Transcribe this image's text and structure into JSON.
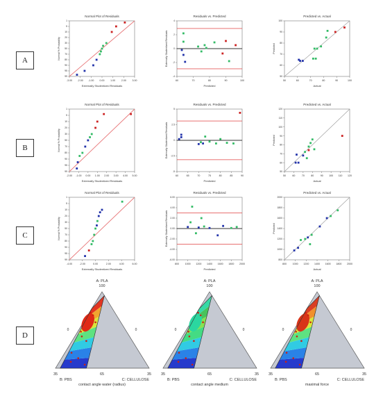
{
  "rows": [
    {
      "label": "A"
    },
    {
      "label": "B"
    },
    {
      "label": "C"
    },
    {
      "label": "D"
    }
  ],
  "colors": {
    "refline": "#e8787a",
    "limit": "#e04040",
    "zero": "#333333",
    "blue": "#2233aa",
    "green": "#33bb66",
    "red": "#cc2222",
    "grey_region": "#c5c9d2"
  },
  "chart_data": [
    {
      "type": "scatter",
      "panel": "A1",
      "title": "Normal Plot of Residuals",
      "xlabel": "Externally Studentized Residuals",
      "ylabel": "Normal % Probability",
      "xlim": [
        -3,
        3
      ],
      "ylim": [
        0,
        100
      ],
      "xticks": [
        "-3.00",
        "-2.00",
        "-1.00",
        "0.00",
        "1.00",
        "2.00",
        "3.00"
      ],
      "yticks": [
        "1",
        "5",
        "10",
        "20",
        "30",
        "50",
        "70",
        "80",
        "90",
        "95",
        "99"
      ],
      "points": [
        {
          "x": -2.3,
          "y": 3,
          "c": "blue"
        },
        {
          "x": -1.6,
          "y": 10,
          "c": "blue"
        },
        {
          "x": -0.8,
          "y": 20,
          "c": "blue"
        },
        {
          "x": -0.5,
          "y": 30,
          "c": "blue"
        },
        {
          "x": -0.2,
          "y": 40,
          "c": "green"
        },
        {
          "x": -0.1,
          "y": 45,
          "c": "green"
        },
        {
          "x": 0.0,
          "y": 50,
          "c": "green"
        },
        {
          "x": 0.1,
          "y": 55,
          "c": "green"
        },
        {
          "x": 0.4,
          "y": 60,
          "c": "green"
        },
        {
          "x": 0.9,
          "y": 80,
          "c": "red"
        },
        {
          "x": 1.3,
          "y": 90,
          "c": "red"
        },
        {
          "x": 2.1,
          "y": 97,
          "c": "red"
        }
      ]
    },
    {
      "type": "scatter",
      "panel": "A2",
      "title": "Residuals vs. Predicted",
      "xlabel": "Predicted",
      "ylabel": "Externally Studentized Residuals",
      "xlim": [
        60,
        100
      ],
      "ylim": [
        -4,
        4
      ],
      "xticks": [
        "60",
        "70",
        "80",
        "90",
        "100"
      ],
      "yticks": [
        "4",
        "2",
        "0",
        "-2",
        "-4"
      ],
      "limits": [
        2.9,
        -2.9
      ],
      "points": [
        {
          "x": 64,
          "y": 2.2,
          "c": "green"
        },
        {
          "x": 64,
          "y": 1.0,
          "c": "green"
        },
        {
          "x": 63,
          "y": -0.2,
          "c": "blue"
        },
        {
          "x": 64,
          "y": -0.9,
          "c": "blue"
        },
        {
          "x": 65,
          "y": -1.9,
          "c": "blue"
        },
        {
          "x": 73,
          "y": 0.3,
          "c": "green"
        },
        {
          "x": 75,
          "y": -0.4,
          "c": "green"
        },
        {
          "x": 77,
          "y": 0.5,
          "c": "green"
        },
        {
          "x": 78,
          "y": 0.1,
          "c": "green"
        },
        {
          "x": 83,
          "y": 0.9,
          "c": "green"
        },
        {
          "x": 88,
          "y": -0.7,
          "c": "red"
        },
        {
          "x": 90,
          "y": 1.1,
          "c": "red"
        },
        {
          "x": 92,
          "y": -1.8,
          "c": "green"
        },
        {
          "x": 96,
          "y": 0.5,
          "c": "red"
        }
      ]
    },
    {
      "type": "scatter",
      "panel": "A3",
      "title": "Predicted vs. Actual",
      "xlabel": "Actual",
      "ylabel": "Predicted",
      "xlim": [
        50,
        100
      ],
      "ylim": [
        50,
        100
      ],
      "xticks": [
        "50",
        "60",
        "70",
        "80",
        "90",
        "100"
      ],
      "yticks": [
        "100",
        "90",
        "80",
        "70",
        "60",
        "50"
      ],
      "points": [
        {
          "x": 61,
          "y": 65,
          "c": "blue"
        },
        {
          "x": 62,
          "y": 64,
          "c": "blue"
        },
        {
          "x": 64,
          "y": 64,
          "c": "blue"
        },
        {
          "x": 72,
          "y": 66,
          "c": "green"
        },
        {
          "x": 74,
          "y": 66,
          "c": "green"
        },
        {
          "x": 73,
          "y": 75,
          "c": "green"
        },
        {
          "x": 75,
          "y": 75,
          "c": "green"
        },
        {
          "x": 78,
          "y": 77,
          "c": "green"
        },
        {
          "x": 82,
          "y": 85,
          "c": "green"
        },
        {
          "x": 83,
          "y": 91,
          "c": "green"
        },
        {
          "x": 89,
          "y": 90,
          "c": "red"
        },
        {
          "x": 96,
          "y": 94,
          "c": "red"
        }
      ]
    },
    {
      "type": "scatter",
      "panel": "B1",
      "title": "Normal Plot of Residuals",
      "xlabel": "Externally Studentized Residuals",
      "ylabel": "Normal % Probability",
      "xlim": [
        -2,
        5
      ],
      "ylim": [
        0,
        100
      ],
      "xticks": [
        "-2.00",
        "-1.00",
        "0.00",
        "1.00",
        "2.00",
        "3.00",
        "4.00",
        "5.00"
      ],
      "yticks": [
        "1",
        "5",
        "10",
        "20",
        "30",
        "50",
        "70",
        "80",
        "90",
        "95",
        "99"
      ],
      "points": [
        {
          "x": -1.2,
          "y": 5,
          "c": "blue"
        },
        {
          "x": -1.1,
          "y": 15,
          "c": "blue"
        },
        {
          "x": -0.9,
          "y": 25,
          "c": "green"
        },
        {
          "x": -0.6,
          "y": 30,
          "c": "green"
        },
        {
          "x": -0.3,
          "y": 40,
          "c": "blue"
        },
        {
          "x": 0.0,
          "y": 50,
          "c": "blue"
        },
        {
          "x": 0.2,
          "y": 55,
          "c": "green"
        },
        {
          "x": 0.4,
          "y": 60,
          "c": "green"
        },
        {
          "x": 0.8,
          "y": 70,
          "c": "red"
        },
        {
          "x": 1.0,
          "y": 80,
          "c": "red"
        },
        {
          "x": 1.7,
          "y": 92,
          "c": "red"
        },
        {
          "x": 4.6,
          "y": 92,
          "c": "red"
        }
      ]
    },
    {
      "type": "scatter",
      "panel": "B2",
      "title": "Residuals vs. Predicted",
      "xlabel": "Predicted",
      "ylabel": "Externally Studentized Residuals",
      "xlim": [
        60,
        90
      ],
      "ylim": [
        -5,
        5
      ],
      "xticks": [
        "60",
        "65",
        "70",
        "75",
        "80",
        "85",
        "90"
      ],
      "yticks": [
        "5",
        "2.5",
        "0",
        "-2.5",
        "-5"
      ],
      "limits": [
        3.1,
        -3.1
      ],
      "points": [
        {
          "x": 61,
          "y": 0.2,
          "c": "blue"
        },
        {
          "x": 62,
          "y": 0.9,
          "c": "blue"
        },
        {
          "x": 62,
          "y": 0.5,
          "c": "blue"
        },
        {
          "x": 70,
          "y": -0.6,
          "c": "blue"
        },
        {
          "x": 72,
          "y": -0.5,
          "c": "blue"
        },
        {
          "x": 71,
          "y": -0.3,
          "c": "green"
        },
        {
          "x": 73,
          "y": 0.6,
          "c": "green"
        },
        {
          "x": 75,
          "y": -0.2,
          "c": "green"
        },
        {
          "x": 78,
          "y": -0.5,
          "c": "green"
        },
        {
          "x": 80,
          "y": 0.2,
          "c": "green"
        },
        {
          "x": 83,
          "y": -0.4,
          "c": "green"
        },
        {
          "x": 86,
          "y": -0.5,
          "c": "green"
        },
        {
          "x": 89,
          "y": 4.4,
          "c": "red"
        }
      ]
    },
    {
      "type": "scatter",
      "panel": "B3",
      "title": "Predicted vs. Actual",
      "xlabel": "Actual",
      "ylabel": "Predicted",
      "xlim": [
        50,
        120
      ],
      "ylim": [
        50,
        120
      ],
      "xticks": [
        "50",
        "60",
        "70",
        "80",
        "90",
        "100",
        "110",
        "120"
      ],
      "yticks": [
        "120",
        "110",
        "100",
        "90",
        "80",
        "70",
        "60",
        "50"
      ],
      "points": [
        {
          "x": 62,
          "y": 60,
          "c": "blue"
        },
        {
          "x": 65,
          "y": 60,
          "c": "blue"
        },
        {
          "x": 63,
          "y": 69,
          "c": "blue"
        },
        {
          "x": 70,
          "y": 68,
          "c": "blue"
        },
        {
          "x": 72,
          "y": 72,
          "c": "green"
        },
        {
          "x": 74,
          "y": 65,
          "c": "green"
        },
        {
          "x": 76,
          "y": 78,
          "c": "green"
        },
        {
          "x": 78,
          "y": 82,
          "c": "green"
        },
        {
          "x": 80,
          "y": 86,
          "c": "green"
        },
        {
          "x": 82,
          "y": 75,
          "c": "green"
        },
        {
          "x": 76,
          "y": 74,
          "c": "red"
        },
        {
          "x": 112,
          "y": 90,
          "c": "red"
        }
      ]
    },
    {
      "type": "scatter",
      "panel": "C1",
      "title": "Normal Plot of Residuals",
      "xlabel": "Externally Studentized Residuals",
      "ylabel": "Normal % Probability",
      "xlim": [
        -4,
        6
      ],
      "ylim": [
        0,
        100
      ],
      "xticks": [
        "-4.00",
        "-2.00",
        "0.00",
        "2.00",
        "4.00",
        "6.00"
      ],
      "yticks": [
        "1",
        "5",
        "10",
        "20",
        "30",
        "50",
        "70",
        "80",
        "90",
        "95",
        "99"
      ],
      "points": [
        {
          "x": -1.6,
          "y": 6,
          "c": "blue"
        },
        {
          "x": -1.0,
          "y": 15,
          "c": "red"
        },
        {
          "x": -0.6,
          "y": 25,
          "c": "green"
        },
        {
          "x": -0.4,
          "y": 30,
          "c": "green"
        },
        {
          "x": -0.2,
          "y": 40,
          "c": "green"
        },
        {
          "x": 0.0,
          "y": 50,
          "c": "green"
        },
        {
          "x": 0.2,
          "y": 55,
          "c": "blue"
        },
        {
          "x": 0.3,
          "y": 62,
          "c": "green"
        },
        {
          "x": 0.5,
          "y": 70,
          "c": "blue"
        },
        {
          "x": 0.7,
          "y": 76,
          "c": "blue"
        },
        {
          "x": 1.0,
          "y": 80,
          "c": "blue"
        },
        {
          "x": 4.1,
          "y": 93,
          "c": "green"
        }
      ]
    },
    {
      "type": "scatter",
      "panel": "C2",
      "title": "Residuals vs. Predicted",
      "xlabel": "Predicted",
      "ylabel": "Externally Studentized Residuals",
      "xlim": [
        800,
        2000
      ],
      "ylim": [
        -6,
        6
      ],
      "xticks": [
        "800",
        "1000",
        "1200",
        "1400",
        "1600",
        "1800",
        "2000"
      ],
      "yticks": [
        "6.00",
        "4.00",
        "2.00",
        "0.00",
        "-2.00",
        "-4.00",
        "-6.00"
      ],
      "limits": [
        3.0,
        -3.0
      ],
      "points": [
        {
          "x": 1000,
          "y": 0.3,
          "c": "blue"
        },
        {
          "x": 1050,
          "y": 1.2,
          "c": "green"
        },
        {
          "x": 1080,
          "y": 4.2,
          "c": "green"
        },
        {
          "x": 1150,
          "y": -0.9,
          "c": "green"
        },
        {
          "x": 1200,
          "y": 0.2,
          "c": "blue"
        },
        {
          "x": 1250,
          "y": 2.0,
          "c": "green"
        },
        {
          "x": 1300,
          "y": 0.4,
          "c": "green"
        },
        {
          "x": 1400,
          "y": 0.1,
          "c": "blue"
        },
        {
          "x": 1550,
          "y": -1.3,
          "c": "blue"
        },
        {
          "x": 1650,
          "y": 0.5,
          "c": "blue"
        },
        {
          "x": 1800,
          "y": 0.1,
          "c": "green"
        },
        {
          "x": 1900,
          "y": 0.3,
          "c": "green"
        }
      ]
    },
    {
      "type": "scatter",
      "panel": "C3",
      "title": "Predicted vs. Actual",
      "xlabel": "Actual",
      "ylabel": "Predicted",
      "xlim": [
        800,
        2000
      ],
      "ylim": [
        800,
        2000
      ],
      "xticks": [
        "800",
        "1000",
        "1200",
        "1400",
        "1600",
        "1800",
        "2000"
      ],
      "yticks": [
        "2000",
        "1800",
        "1600",
        "1400",
        "1200",
        "1000",
        "800"
      ],
      "points": [
        {
          "x": 980,
          "y": 980,
          "c": "blue"
        },
        {
          "x": 1050,
          "y": 1030,
          "c": "blue"
        },
        {
          "x": 1100,
          "y": 1180,
          "c": "green"
        },
        {
          "x": 1180,
          "y": 1200,
          "c": "green"
        },
        {
          "x": 1230,
          "y": 1230,
          "c": "blue"
        },
        {
          "x": 1270,
          "y": 1100,
          "c": "green"
        },
        {
          "x": 1300,
          "y": 1280,
          "c": "green"
        },
        {
          "x": 1450,
          "y": 1440,
          "c": "blue"
        },
        {
          "x": 1580,
          "y": 1600,
          "c": "blue"
        },
        {
          "x": 1650,
          "y": 1640,
          "c": "green"
        },
        {
          "x": 1780,
          "y": 1750,
          "c": "green"
        }
      ]
    }
  ],
  "ternary": [
    {
      "top_label": "A: PLA",
      "top_value": "100",
      "left_label": "B: PBS",
      "left_value": "35",
      "right_label": "C: CELLULOSE",
      "right_value": "35",
      "bottom_value": "65",
      "left_edge_value": "0",
      "right_edge_value": "0",
      "caption": "contact angle water (radius)",
      "scheme": "red"
    },
    {
      "top_label": "A: PLA",
      "top_value": "100",
      "left_label": "B: PBS",
      "left_value": "35",
      "right_label": "C: CELLULOSE",
      "right_value": "35",
      "bottom_value": "65",
      "left_edge_value": "0",
      "right_edge_value": "0",
      "caption": "contact angle medium",
      "scheme": "green"
    },
    {
      "top_label": "A: PLA",
      "top_value": "100",
      "left_label": "B: PBS",
      "left_value": "35",
      "right_label": "C: CELLULOSE",
      "right_value": "35",
      "bottom_value": "65",
      "left_edge_value": "0",
      "right_edge_value": "0",
      "caption": "maximal force",
      "scheme": "orange"
    }
  ]
}
